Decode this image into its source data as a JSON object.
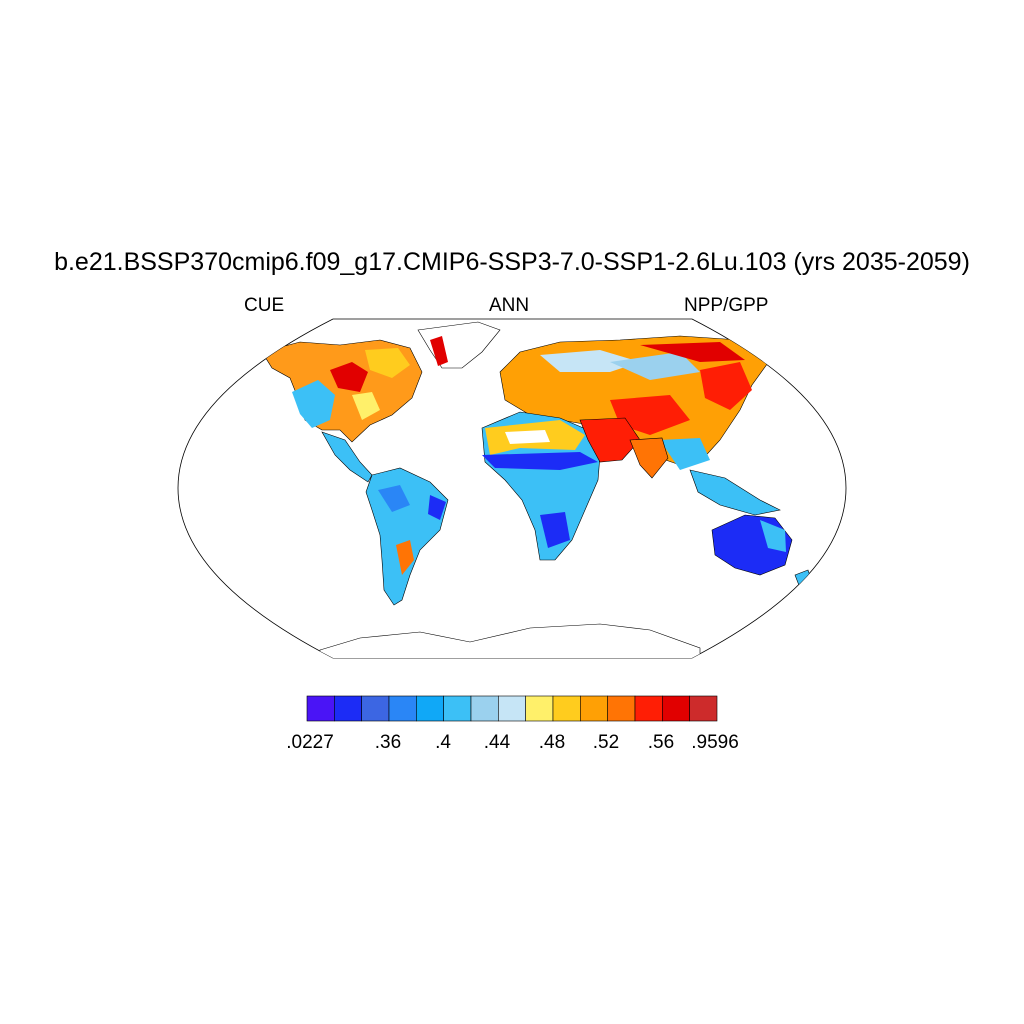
{
  "title": "b.e21.BSSP370cmip6.f09_g17.CMIP6-SSP3-7.0-SSP1-2.6Lu.103 (yrs 2035-2059)",
  "subtitle_left": "CUE",
  "subtitle_center": "ANN",
  "subtitle_right": "NPP/GPP",
  "colorbar": {
    "colors": [
      "#4a14f6",
      "#1c2cf6",
      "#3c66e3",
      "#2a86f6",
      "#10a8f7",
      "#3cc0f6",
      "#9bd1ee",
      "#c6e5f6",
      "#fff06a",
      "#ffcc1e",
      "#ffa005",
      "#ff7405",
      "#ff1e05",
      "#e10000",
      "#cd2b2b"
    ],
    "labels": [
      ".0227",
      ".36",
      ".4",
      ".44",
      ".48",
      ".52",
      ".56",
      ".9596"
    ]
  }
}
